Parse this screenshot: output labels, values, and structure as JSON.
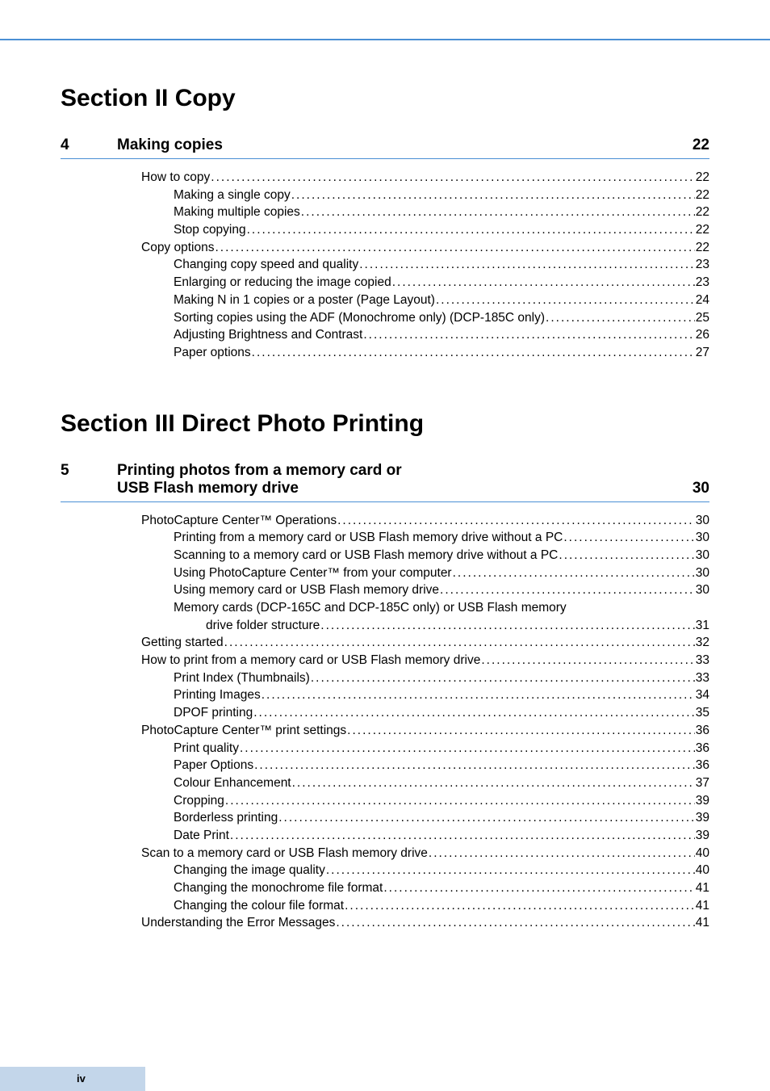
{
  "footer": {
    "page_number": "iv"
  },
  "sections": [
    {
      "title": "Section II   Copy",
      "chapters": [
        {
          "num": "4",
          "title": "Making copies",
          "page": "22",
          "entries": [
            {
              "text": "How to copy",
              "page": "22",
              "indent": 0
            },
            {
              "text": "Making a single copy",
              "page": "22",
              "indent": 1
            },
            {
              "text": "Making multiple copies",
              "page": "22",
              "indent": 1
            },
            {
              "text": "Stop copying",
              "page": "22",
              "indent": 1
            },
            {
              "text": "Copy options",
              "page": "22",
              "indent": 0
            },
            {
              "text": "Changing copy speed and quality",
              "page": "23",
              "indent": 1
            },
            {
              "text": "Enlarging or reducing the image copied",
              "page": "23",
              "indent": 1
            },
            {
              "text": "Making N in 1 copies or a poster (Page Layout)",
              "page": "24",
              "indent": 1
            },
            {
              "text": "Sorting copies using the ADF (Monochrome only) (DCP-185C only)",
              "page": "25",
              "indent": 1
            },
            {
              "text": "Adjusting Brightness and Contrast",
              "page": "26",
              "indent": 1
            },
            {
              "text": "Paper options",
              "page": "27",
              "indent": 1
            }
          ]
        }
      ]
    },
    {
      "title": "Section III  Direct Photo Printing",
      "chapters": [
        {
          "num": "5",
          "title_line1": "Printing photos from a memory card or",
          "title_line2": "USB Flash memory drive",
          "page": "30",
          "entries": [
            {
              "text": "PhotoCapture Center™ Operations",
              "page": "30",
              "indent": 0
            },
            {
              "text": "Printing from a memory card or USB Flash memory drive without a PC",
              "page": "30",
              "indent": 1
            },
            {
              "text": "Scanning to a memory card or USB Flash memory drive without a PC",
              "page": "30",
              "indent": 1
            },
            {
              "text": "Using PhotoCapture Center™ from your computer",
              "page": "30",
              "indent": 1
            },
            {
              "text": "Using memory card or USB Flash memory drive",
              "page": "30",
              "indent": 1
            },
            {
              "text_line1": "Memory cards (DCP-165C and DCP-185C only) or USB Flash memory",
              "text_line2": "drive folder structure",
              "page": "31",
              "indent": 1,
              "wrap": true
            },
            {
              "text": "Getting started",
              "page": "32",
              "indent": 0
            },
            {
              "text": "How to print from a memory card or USB Flash memory drive",
              "page": "33",
              "indent": 0
            },
            {
              "text": "Print Index (Thumbnails)",
              "page": "33",
              "indent": 1
            },
            {
              "text": "Printing Images",
              "page": "34",
              "indent": 1
            },
            {
              "text": "DPOF printing",
              "page": "35",
              "indent": 1
            },
            {
              "text": "PhotoCapture Center™ print settings",
              "page": "36",
              "indent": 0
            },
            {
              "text": "Print quality",
              "page": "36",
              "indent": 1
            },
            {
              "text": "Paper Options",
              "page": "36",
              "indent": 1
            },
            {
              "text": "Colour Enhancement",
              "page": "37",
              "indent": 1
            },
            {
              "text": "Cropping",
              "page": "39",
              "indent": 1
            },
            {
              "text": "Borderless printing",
              "page": "39",
              "indent": 1
            },
            {
              "text": "Date Print",
              "page": "39",
              "indent": 1
            },
            {
              "text": "Scan to a memory card or USB Flash memory drive",
              "page": "40",
              "indent": 0
            },
            {
              "text": "Changing the image quality",
              "page": "40",
              "indent": 1
            },
            {
              "text": "Changing the monochrome file format",
              "page": "41",
              "indent": 1
            },
            {
              "text": "Changing the colour file format",
              "page": "41",
              "indent": 1
            },
            {
              "text": "Understanding the Error Messages",
              "page": "41",
              "indent": 0
            }
          ]
        }
      ]
    }
  ]
}
